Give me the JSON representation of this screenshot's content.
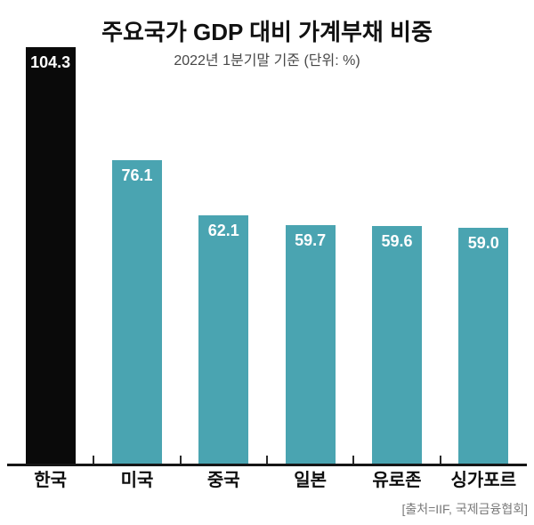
{
  "chart_data": {
    "type": "bar",
    "title": "주요국가 GDP 대비 가계부채 비중",
    "subtitle": "2022년 1분기말 기준 (단위: %)",
    "categories": [
      "한국",
      "미국",
      "중국",
      "일본",
      "유로존",
      "싱가포르"
    ],
    "values": [
      104.3,
      76.1,
      62.1,
      59.7,
      59.6,
      59.0
    ],
    "value_labels": [
      "104.3",
      "76.1",
      "62.1",
      "59.7",
      "59.6",
      "59.0"
    ],
    "bar_colors": [
      "#0a0a0a",
      "#4aa4b1",
      "#4aa4b1",
      "#4aa4b1",
      "#4aa4b1",
      "#4aa4b1"
    ],
    "highlight_color": "#0a0a0a",
    "series_color": "#4aa4b1",
    "value_label_color": "#ffffff",
    "axis_color": "#161616",
    "ylim": [
      0,
      104.3
    ],
    "grid": false,
    "legend": "none",
    "source": "[출처=IIF, 국제금융협회]"
  }
}
